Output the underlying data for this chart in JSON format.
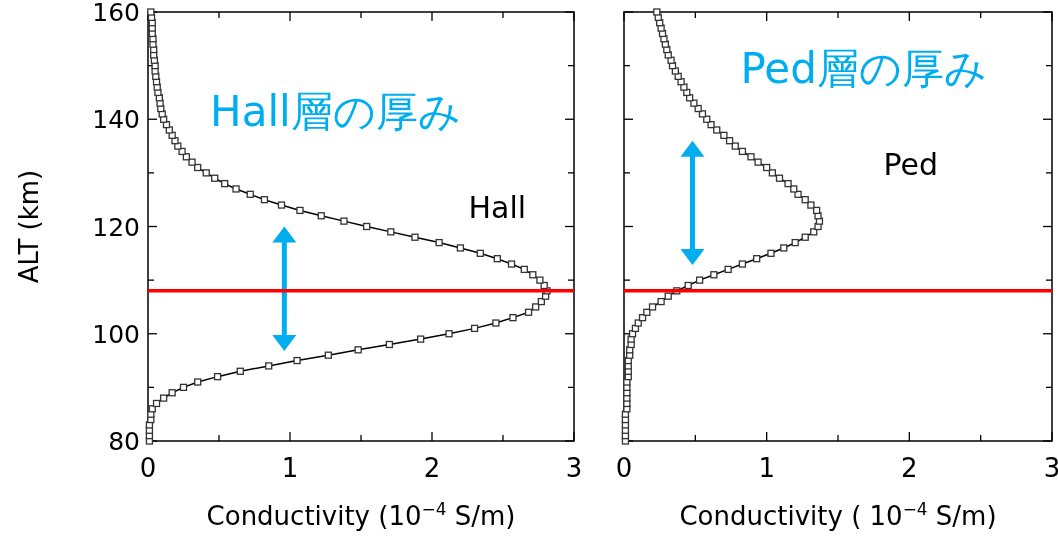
{
  "chart_data": [
    {
      "type": "line",
      "xlabel": "Conductivity (10$^{−4}$ S/m)",
      "ylabel": "ALT (km)",
      "xlim": [
        0,
        3
      ],
      "ylim": [
        80,
        160
      ],
      "xticks": [
        0,
        {
          "value": 0.5,
          "label": null
        },
        1,
        {
          "value": 1.5,
          "label": null
        },
        2,
        {
          "value": 2.5,
          "label": null
        },
        3
      ],
      "yticks": [
        80,
        {
          "value": 90,
          "label": null
        },
        100,
        {
          "value": 110,
          "label": null
        },
        120,
        {
          "value": 130,
          "label": null
        },
        140,
        {
          "value": 150,
          "label": null
        },
        160
      ],
      "marker": "square",
      "line_style": "solid",
      "grid": false,
      "annotations": [
        "Hall層の厚み"
      ],
      "ref_lines": [
        {
          "axis": "y",
          "value": 108,
          "color": "#ff0000"
        }
      ],
      "series": [
        {
          "name": "Hall",
          "color": "#000000",
          "x": [
            0.01,
            0.01,
            0.01,
            0.01,
            0.02,
            0.02,
            0.03,
            0.06,
            0.11,
            0.17,
            0.25,
            0.35,
            0.49,
            0.65,
            0.85,
            1.05,
            1.27,
            1.48,
            1.7,
            1.92,
            2.12,
            2.3,
            2.45,
            2.57,
            2.68,
            2.73,
            2.77,
            2.8,
            2.81,
            2.79,
            2.76,
            2.71,
            2.65,
            2.56,
            2.46,
            2.34,
            2.2,
            2.05,
            1.88,
            1.71,
            1.54,
            1.38,
            1.22,
            1.07,
            0.94,
            0.82,
            0.72,
            0.62,
            0.54,
            0.47,
            0.41,
            0.35,
            0.31,
            0.27,
            0.24,
            0.21,
            0.19,
            0.17,
            0.15,
            0.13,
            0.11,
            0.1,
            0.09,
            0.085,
            0.08,
            0.07,
            0.065,
            0.06,
            0.055,
            0.05,
            0.05,
            0.045,
            0.04,
            0.04,
            0.035,
            0.035,
            0.03,
            0.03,
            0.03,
            0.025,
            0.02
          ],
          "values": [
            80,
            81,
            82,
            83,
            84,
            85,
            86,
            87,
            88,
            89,
            90,
            91,
            92,
            93,
            94,
            95,
            96,
            97,
            98,
            99,
            100,
            101,
            102,
            103,
            104,
            105,
            106,
            107,
            108,
            109,
            110,
            111,
            112,
            113,
            114,
            115,
            116,
            117,
            118,
            119,
            120,
            121,
            122,
            123,
            124,
            125,
            126,
            127,
            128,
            129,
            130,
            131,
            132,
            133,
            134,
            135,
            136,
            137,
            138,
            139,
            140,
            141,
            142,
            143,
            144,
            145,
            146,
            147,
            148,
            149,
            150,
            151,
            152,
            153,
            154,
            155,
            156,
            157,
            158,
            159,
            160
          ]
        }
      ]
    },
    {
      "type": "line",
      "xlabel": "Conductivity ( 10$^{−4}$ S/m)",
      "xlim": [
        0,
        3
      ],
      "ylim": [
        80,
        160
      ],
      "tick_labels": "x",
      "xticks": [
        0,
        {
          "value": 0.5,
          "label": null
        },
        1,
        {
          "value": 1.5,
          "label": null
        },
        2,
        {
          "value": 2.5,
          "label": null
        },
        3
      ],
      "yticks": [
        80,
        {
          "value": 90,
          "label": null
        },
        100,
        {
          "value": 110,
          "label": null
        },
        120,
        {
          "value": 130,
          "label": null
        },
        140,
        {
          "value": 150,
          "label": null
        },
        160
      ],
      "marker": "square",
      "line_style": "solid",
      "grid": false,
      "annotations": [
        "Ped層の厚み"
      ],
      "ref_lines": [
        {
          "axis": "y",
          "value": 108,
          "color": "#ff0000"
        }
      ],
      "series": [
        {
          "name": "Ped",
          "color": "#000000",
          "x": [
            0.01,
            0.01,
            0.01,
            0.01,
            0.01,
            0.01,
            0.02,
            0.02,
            0.02,
            0.02,
            0.02,
            0.02,
            0.03,
            0.03,
            0.03,
            0.03,
            0.04,
            0.04,
            0.05,
            0.05,
            0.06,
            0.08,
            0.1,
            0.13,
            0.16,
            0.2,
            0.26,
            0.31,
            0.37,
            0.45,
            0.53,
            0.63,
            0.73,
            0.83,
            0.93,
            1.03,
            1.12,
            1.2,
            1.27,
            1.33,
            1.36,
            1.37,
            1.36,
            1.35,
            1.31,
            1.27,
            1.22,
            1.19,
            1.15,
            1.09,
            1.04,
            1.0,
            0.94,
            0.89,
            0.83,
            0.78,
            0.74,
            0.7,
            0.65,
            0.61,
            0.58,
            0.55,
            0.52,
            0.49,
            0.46,
            0.44,
            0.42,
            0.4,
            0.38,
            0.36,
            0.34,
            0.33,
            0.31,
            0.3,
            0.29,
            0.28,
            0.27,
            0.26,
            0.25,
            0.24,
            0.23
          ],
          "values": [
            80,
            81,
            82,
            83,
            84,
            85,
            86,
            87,
            88,
            89,
            90,
            91,
            92,
            93,
            94,
            95,
            96,
            97,
            98,
            99,
            100,
            101,
            102,
            103,
            104,
            105,
            106,
            107,
            108,
            109,
            110,
            111,
            112,
            113,
            114,
            115,
            116,
            117,
            118,
            119,
            120,
            121,
            122,
            123,
            124,
            125,
            126,
            127,
            128,
            129,
            130,
            131,
            132,
            133,
            134,
            135,
            136,
            137,
            138,
            139,
            140,
            141,
            142,
            143,
            144,
            145,
            146,
            147,
            148,
            149,
            150,
            151,
            152,
            153,
            154,
            155,
            156,
            157,
            158,
            159,
            160
          ]
        }
      ]
    }
  ]
}
